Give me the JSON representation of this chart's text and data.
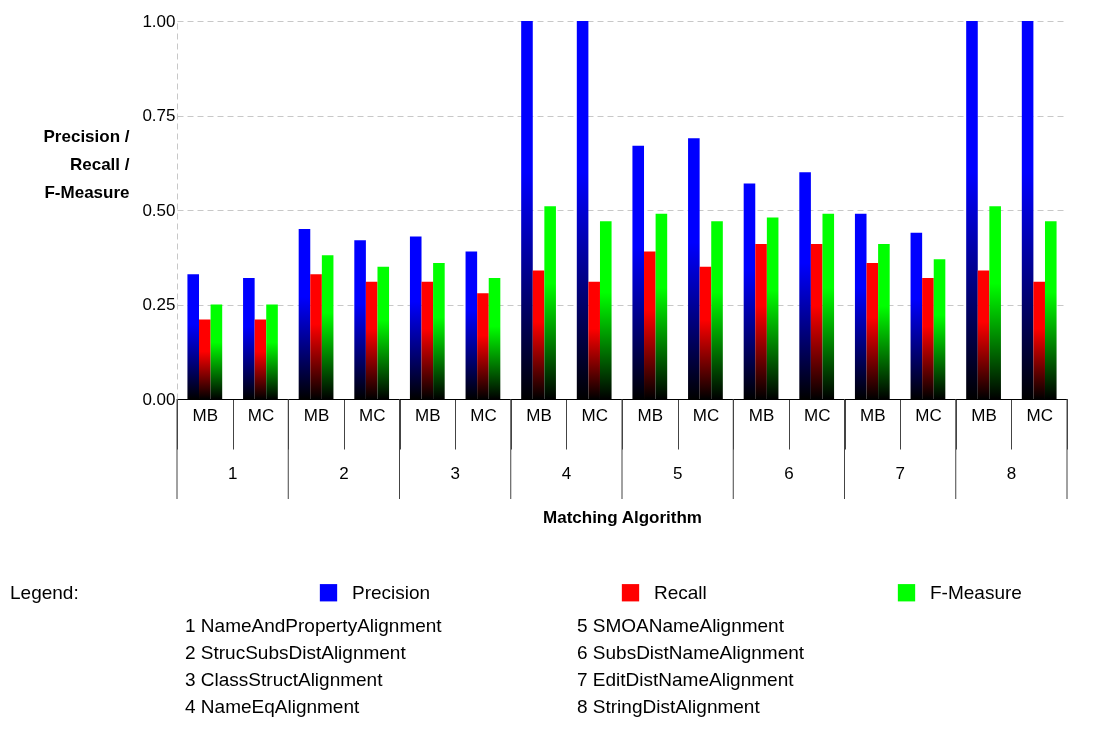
{
  "chart_data": {
    "type": "bar",
    "xlabel": "Matching Algorithm",
    "ylabel": "Precision / Recall / F-Measure",
    "legend_title": "Legend:",
    "categories": [
      "MB",
      "MC",
      "MB",
      "MC",
      "MB",
      "MC",
      "MB",
      "MC",
      "MB",
      "MC",
      "MB",
      "MC",
      "MB",
      "MC",
      "MB",
      "MC"
    ],
    "series": [
      {
        "name": "Precision",
        "color": "#0000ff",
        "values": [
          0.33,
          0.32,
          0.45,
          0.42,
          0.43,
          0.39,
          1.0,
          1.0,
          0.67,
          0.69,
          0.57,
          0.6,
          0.49,
          0.44,
          1.0,
          1.0
        ]
      },
      {
        "name": "Recall",
        "color": "#ff0000",
        "values": [
          0.21,
          0.21,
          0.33,
          0.31,
          0.31,
          0.28,
          0.34,
          0.31,
          0.39,
          0.35,
          0.41,
          0.41,
          0.36,
          0.32,
          0.34,
          0.31
        ]
      },
      {
        "name": "F-Measure",
        "color": "#00ff00",
        "values": [
          0.25,
          0.25,
          0.38,
          0.35,
          0.36,
          0.32,
          0.51,
          0.47,
          0.49,
          0.47,
          0.48,
          0.49,
          0.41,
          0.37,
          0.51,
          0.47
        ]
      }
    ],
    "ylim": [
      0,
      1
    ],
    "yticks": [
      {
        "value": 0,
        "label": "0.00"
      },
      {
        "value": 0.25,
        "label": "0.25"
      },
      {
        "value": 0.5,
        "label": "0.50"
      },
      {
        "value": 0.75,
        "label": "0.75"
      },
      {
        "value": 1,
        "label": "1.00"
      }
    ],
    "grid": "y",
    "legend": "bottom",
    "annotations": [
      "1",
      "2",
      "3",
      "4",
      "5",
      "6",
      "7",
      "8",
      "1    NameAndPropertyAlignment",
      "2    StrucSubsDistAlignment",
      "3    ClassStructAlignment",
      "4    NameEqAlignment",
      "5    SMOANameAlignment",
      "6    SubsDistNameAlignment",
      "7    EditDistNameAlignment",
      "8    StringDistAlignment"
    ]
  }
}
